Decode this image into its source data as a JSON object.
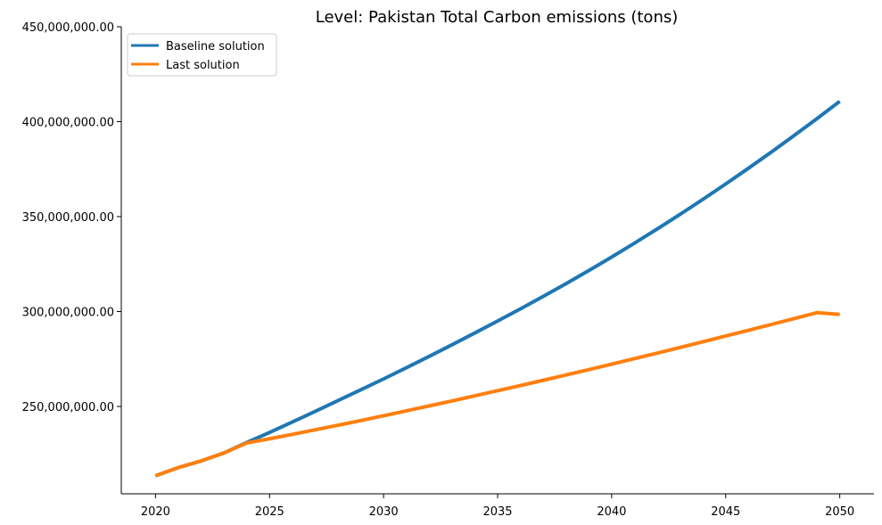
{
  "chart_data": {
    "type": "line",
    "title": "Level: Pakistan Total Carbon emissions (tons)",
    "xlabel": "",
    "ylabel": "",
    "x": [
      2020,
      2021,
      2022,
      2023,
      2024,
      2025,
      2026,
      2027,
      2028,
      2029,
      2030,
      2031,
      2032,
      2033,
      2034,
      2035,
      2036,
      2037,
      2038,
      2039,
      2040,
      2041,
      2042,
      2043,
      2044,
      2045,
      2046,
      2047,
      2048,
      2049,
      2050
    ],
    "series": [
      {
        "name": "Baseline solution",
        "color": "#1f77b4",
        "values": [
          213500000,
          217800000,
          221300000,
          225500000,
          231000000,
          236300000,
          241800000,
          247400000,
          253100000,
          258800000,
          264500000,
          270400000,
          276400000,
          282500000,
          288700000,
          295000000,
          301400000,
          308000000,
          314700000,
          321600000,
          328700000,
          336000000,
          343500000,
          351200000,
          359100000,
          367200000,
          375500000,
          384000000,
          392700000,
          401600000,
          410700000
        ]
      },
      {
        "name": "Last solution",
        "color": "#ff7f0e",
        "values": [
          213500000,
          217800000,
          221300000,
          225500000,
          230800000,
          233000000,
          235300000,
          237700000,
          240100000,
          242600000,
          245100000,
          247700000,
          250300000,
          252900000,
          255600000,
          258300000,
          261000000,
          263800000,
          266600000,
          269400000,
          272300000,
          275200000,
          278100000,
          281100000,
          284100000,
          287100000,
          290100000,
          293200000,
          296300000,
          299400000,
          298500000
        ]
      }
    ],
    "xlim": [
      2018.5,
      2051.5
    ],
    "ylim": [
      204000000,
      450000000
    ],
    "x_ticks": [
      "2020",
      "2025",
      "2030",
      "2035",
      "2040",
      "2045",
      "2050"
    ],
    "y_ticks": [
      "250,000,000.00",
      "300,000,000.00",
      "350,000,000.00",
      "400,000,000.00",
      "450,000,000.00"
    ],
    "grid": false,
    "legend_position": "top-left"
  }
}
